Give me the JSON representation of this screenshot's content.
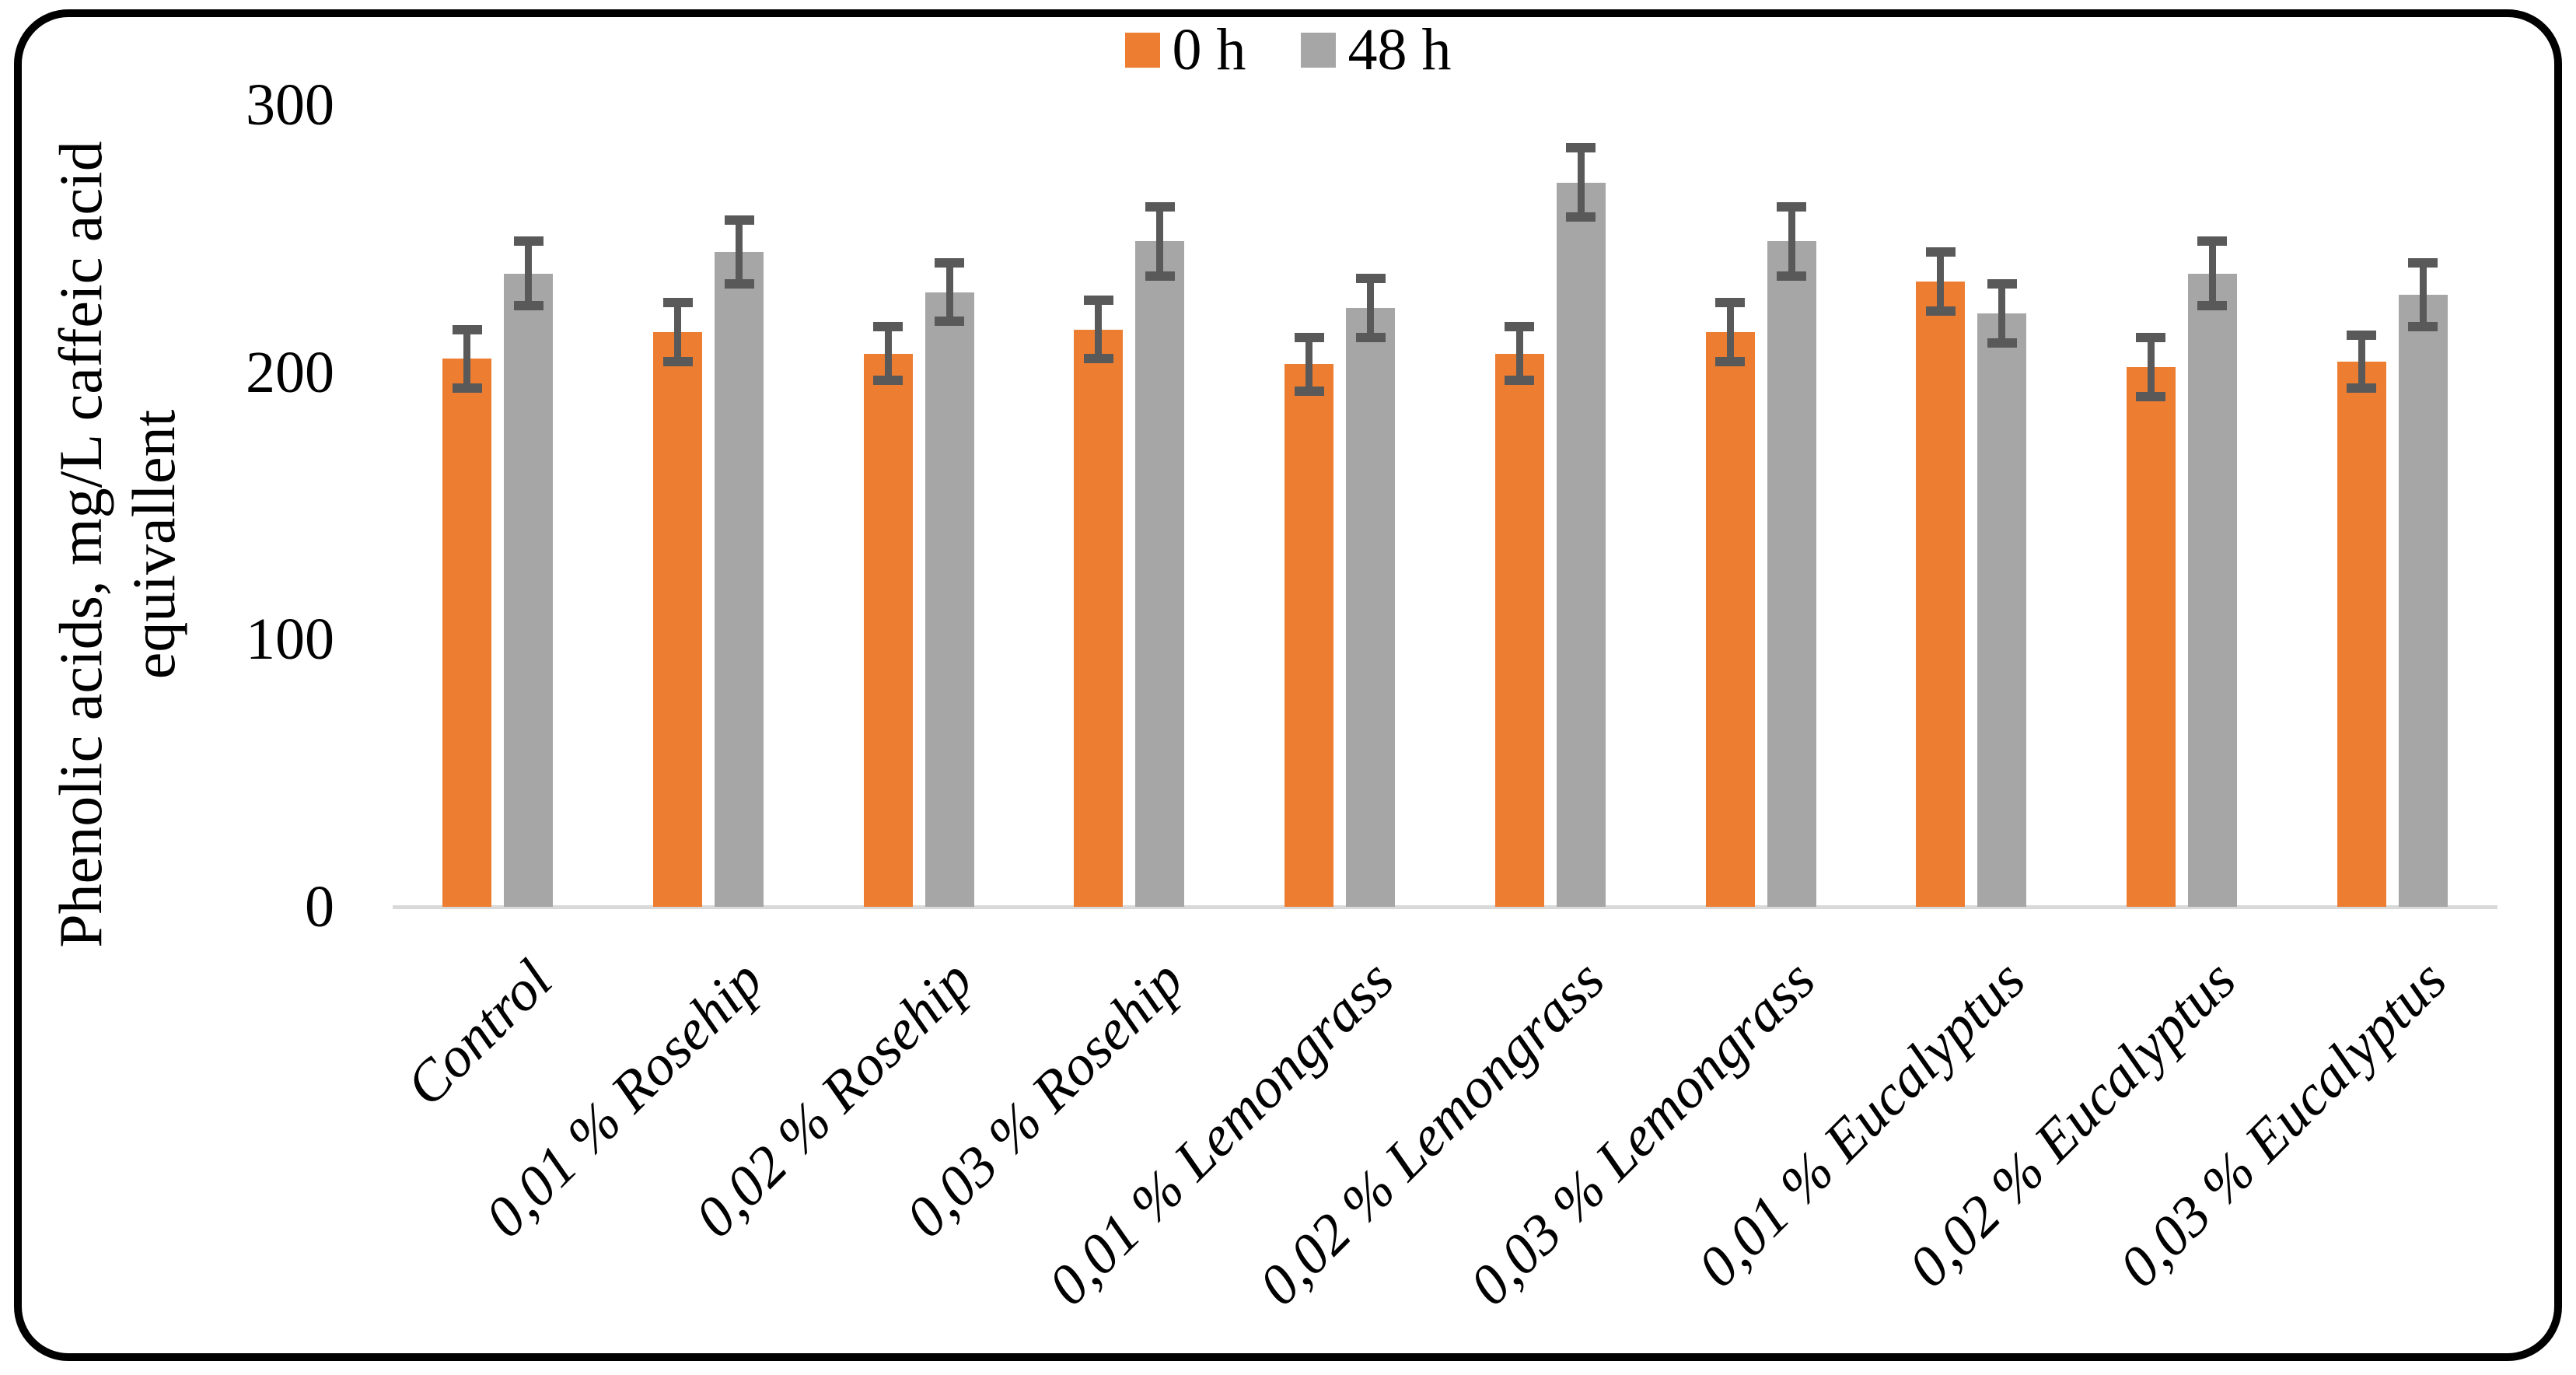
{
  "figure": {
    "description": "Grouped column chart with error bars inside a rounded black border",
    "background": "#FFFFFF",
    "border_color": "#000000"
  },
  "legend": {
    "items": [
      {
        "label": "0 h",
        "color": "#ED7D31"
      },
      {
        "label": "48 h",
        "color": "#A6A6A6"
      }
    ]
  },
  "chart_data": {
    "type": "bar",
    "title": "",
    "xlabel": "",
    "ylabel": "Phenolic acids, mg/L caffeic acid equivallent",
    "ylabel_lines": [
      "Phenolic acids, mg/L caffeic acid",
      "equivallent"
    ],
    "ylim": [
      0,
      300
    ],
    "yticks": [
      0,
      100,
      200,
      300
    ],
    "grid": false,
    "legend_position": "top-center",
    "categories": [
      "Control",
      "0,01 % Rosehip",
      "0,02 % Rosehip",
      "0,03 % Rosehip",
      "0,01 % Lemongrass",
      "0,02 % Lemongrass",
      "0,03 % Lemongrass",
      "0,01 % Eucalyptus",
      "0,02 % Eucalyptus",
      "0,03 % Eucalyptus"
    ],
    "series": [
      {
        "name": "0 h",
        "color": "#ED7D31",
        "values": [
          205,
          215,
          207,
          216,
          203,
          207,
          215,
          234,
          202,
          204
        ],
        "errors": [
          11,
          11,
          10,
          11,
          10,
          10,
          11,
          11,
          11,
          10
        ]
      },
      {
        "name": "48 h",
        "color": "#A6A6A6",
        "values": [
          237,
          245,
          230,
          249,
          224,
          271,
          249,
          222,
          237,
          229
        ],
        "errors": [
          12,
          12,
          11,
          13,
          11,
          13,
          13,
          11,
          12,
          12
        ]
      }
    ],
    "error_bar_color": "#595959",
    "axis_line_color": "#D9D9D9"
  }
}
